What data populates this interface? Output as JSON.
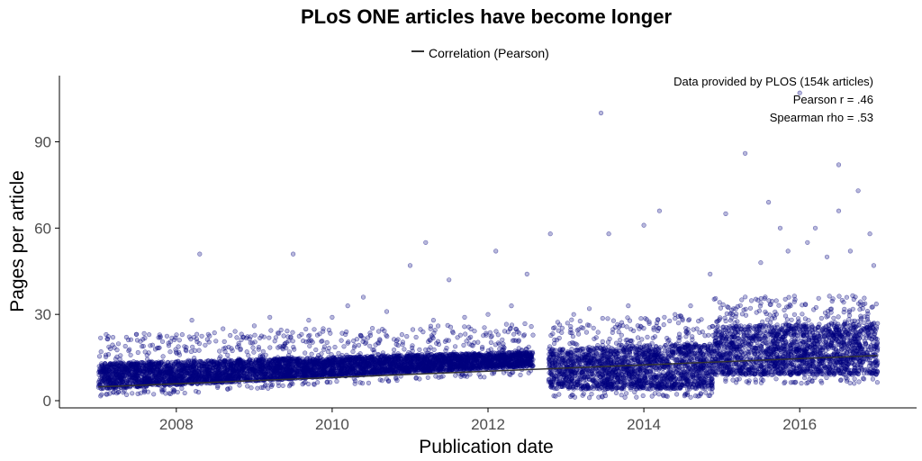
{
  "chart_data": {
    "type": "scatter",
    "title": "PLoS ONE articles have become longer",
    "legend": {
      "position": "top",
      "entries": [
        {
          "label": "Correlation (Pearson)",
          "color": "#333333"
        }
      ]
    },
    "annotations": [
      "Data provided by PLOS (154k articles)",
      "Pearson r = .46",
      "Spearman rho = .53"
    ],
    "xlabel": "Publication date",
    "ylabel": "Pages per article",
    "xlim": [
      2006.5,
      2017.5
    ],
    "ylim": [
      -2.5,
      113
    ],
    "x_ticks": [
      2008,
      2010,
      2012,
      2014,
      2016
    ],
    "x_tick_labels": [
      "2008",
      "2010",
      "2012",
      "2014",
      "2016"
    ],
    "y_ticks": [
      0,
      30,
      60,
      90
    ],
    "y_tick_labels": [
      "0",
      "30",
      "60",
      "90"
    ],
    "grid": false,
    "point_color": "#00007F",
    "series": [
      {
        "name": "Correlation (Pearson)",
        "kind": "trend_line",
        "color": "#333333",
        "x": [
          2007.0,
          2017.0
        ],
        "y": [
          4.8,
          15.7
        ]
      },
      {
        "kind": "point_density_bands",
        "bands": [
          {
            "x": [
              2007.0,
              2012.58
            ],
            "y_start": [
              4,
              13
            ],
            "y_end": [
              12,
              17
            ]
          },
          {
            "x": [
              2012.78,
              2014.9
            ],
            "y_start": [
              4,
              18
            ],
            "y_end": [
              4,
              20
            ]
          },
          {
            "x": [
              2014.9,
              2017.0
            ],
            "y_start": [
              9,
              26
            ],
            "y_end": [
              9,
              27
            ]
          }
        ]
      },
      {
        "kind": "outlier_points",
        "points": [
          [
            2007.1,
            23
          ],
          [
            2007.5,
            21
          ],
          [
            2007.9,
            20
          ],
          [
            2008.2,
            28
          ],
          [
            2008.3,
            51
          ],
          [
            2008.6,
            25
          ],
          [
            2009.0,
            26
          ],
          [
            2009.2,
            29
          ],
          [
            2009.5,
            51
          ],
          [
            2009.7,
            28
          ],
          [
            2010.0,
            29
          ],
          [
            2010.2,
            33
          ],
          [
            2010.4,
            36
          ],
          [
            2010.7,
            31
          ],
          [
            2011.0,
            47
          ],
          [
            2011.2,
            55
          ],
          [
            2011.3,
            28
          ],
          [
            2011.5,
            42
          ],
          [
            2011.7,
            29
          ],
          [
            2012.0,
            30
          ],
          [
            2012.1,
            52
          ],
          [
            2012.3,
            33
          ],
          [
            2012.5,
            44
          ],
          [
            2012.8,
            58
          ],
          [
            2013.1,
            30
          ],
          [
            2013.3,
            32
          ],
          [
            2013.45,
            100
          ],
          [
            2013.55,
            58
          ],
          [
            2013.8,
            33
          ],
          [
            2014.0,
            61
          ],
          [
            2014.2,
            66
          ],
          [
            2014.4,
            30
          ],
          [
            2014.6,
            33
          ],
          [
            2014.85,
            44
          ],
          [
            2015.05,
            65
          ],
          [
            2015.3,
            86
          ],
          [
            2015.5,
            48
          ],
          [
            2015.6,
            69
          ],
          [
            2015.75,
            60
          ],
          [
            2015.85,
            52
          ],
          [
            2016.0,
            107
          ],
          [
            2016.1,
            55
          ],
          [
            2016.2,
            60
          ],
          [
            2016.35,
            50
          ],
          [
            2016.5,
            66
          ],
          [
            2016.65,
            52
          ],
          [
            2016.75,
            73
          ],
          [
            2016.9,
            58
          ],
          [
            2016.5,
            82
          ],
          [
            2016.95,
            47
          ]
        ]
      }
    ]
  }
}
